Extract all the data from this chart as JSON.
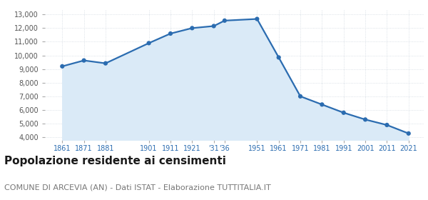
{
  "years": [
    1861,
    1871,
    1881,
    1901,
    1911,
    1921,
    1931,
    1936,
    1951,
    1961,
    1971,
    1981,
    1991,
    2001,
    2011,
    2021
  ],
  "population": [
    9200,
    9630,
    9420,
    10900,
    11600,
    12000,
    12150,
    12550,
    12670,
    9850,
    7000,
    6400,
    5800,
    5300,
    4900,
    4280
  ],
  "line_color": "#2b6cb0",
  "fill_color": "#daeaf7",
  "marker_color": "#2b6cb0",
  "grid_color": "#d0d8e0",
  "bg_color": "#ffffff",
  "title": "Popolazione residente ai censimenti",
  "subtitle": "COMUNE DI ARCEVIA (AN) - Dati ISTAT - Elaborazione TUTTITALIA.IT",
  "ylim": [
    3800,
    13400
  ],
  "yticks": [
    4000,
    5000,
    6000,
    7000,
    8000,
    9000,
    10000,
    11000,
    12000,
    13000
  ],
  "xlim_left": 1853,
  "xlim_right": 2028,
  "title_fontsize": 11,
  "subtitle_fontsize": 8,
  "axis_tick_color": "#2b6cb0",
  "ytick_label_color": "#555555",
  "marker_size": 20,
  "line_width": 1.6
}
